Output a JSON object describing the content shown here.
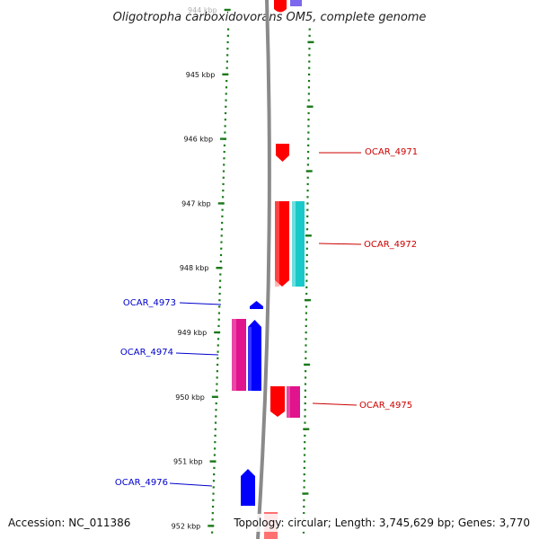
{
  "title": "Oligotropha carboxidovorans OM5, complete genome",
  "accession": "Accession: NC_011386",
  "summary": "Topology: circular; Length: 3,745,629 bp; Genes: 3,770",
  "colors": {
    "forward_label": "#cc0000",
    "reverse_label": "#0000cc",
    "tick": "#1a7a1a",
    "backbone": "#8a8a8a",
    "cds_red": "#ff0000",
    "cds_blue": "#0000ff",
    "cds_magenta": "#e0148c",
    "cds_cyan": "#19c9c9",
    "cds_purple": "#7b68ee"
  },
  "kbp_ticks": [
    {
      "label": "944 kbp",
      "pos": 944.0
    },
    {
      "label": "945 kbp",
      "pos": 945.0
    },
    {
      "label": "946 kbp",
      "pos": 946.0
    },
    {
      "label": "947 kbp",
      "pos": 947.0
    },
    {
      "label": "948 kbp",
      "pos": 948.0
    },
    {
      "label": "949 kbp",
      "pos": 949.0
    },
    {
      "label": "950 kbp",
      "pos": 950.0
    },
    {
      "label": "951 kbp",
      "pos": 951.0
    },
    {
      "label": "952 kbp",
      "pos": 952.0
    }
  ],
  "genes": [
    {
      "label": "OCAR_4971",
      "strand": "forward"
    },
    {
      "label": "OCAR_4972",
      "strand": "forward"
    },
    {
      "label": "OCAR_4973",
      "strand": "reverse"
    },
    {
      "label": "OCAR_4974",
      "strand": "reverse"
    },
    {
      "label": "OCAR_4975",
      "strand": "forward"
    },
    {
      "label": "OCAR_4976",
      "strand": "reverse"
    }
  ]
}
